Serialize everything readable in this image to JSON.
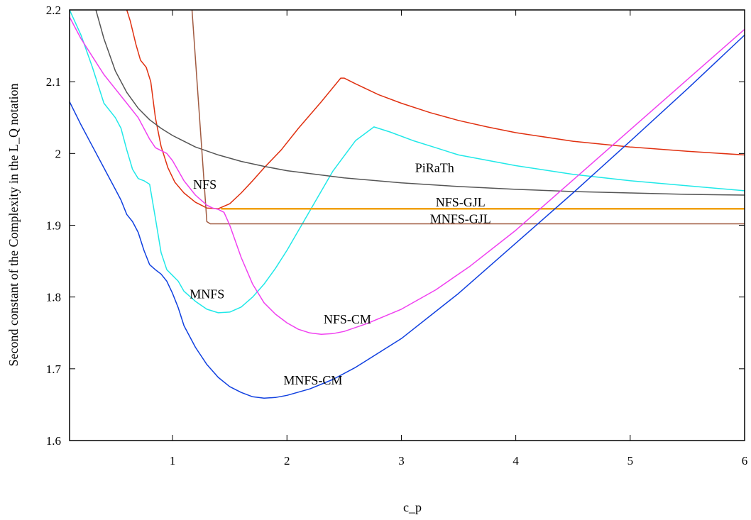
{
  "chart_data": {
    "type": "line",
    "title": "",
    "xlabel": "c_p",
    "ylabel": "Second constant of the Complexity in the L_Q notation",
    "xlim": [
      0.1,
      6
    ],
    "ylim": [
      1.6,
      2.2
    ],
    "xticks": [
      1,
      2,
      3,
      4,
      5,
      6
    ],
    "xtick_labels": [
      "1",
      "2",
      "3",
      "4",
      "5",
      "6"
    ],
    "yticks": [
      1.6,
      1.7,
      1.8,
      1.9,
      2.0,
      2.1,
      2.2
    ],
    "ytick_labels": [
      "1.6",
      "1.7",
      "1.8",
      "1.9",
      "2",
      "2.1",
      "2.2"
    ],
    "grid": false,
    "legend": "none",
    "series": [
      {
        "name": "NFS",
        "color": "#e03010",
        "width": 1.5,
        "label_at": [
          1.18,
          1.951
        ],
        "points": [
          [
            0.6,
            2.2
          ],
          [
            0.63,
            2.185
          ],
          [
            0.68,
            2.152
          ],
          [
            0.72,
            2.13
          ],
          [
            0.77,
            2.12
          ],
          [
            0.81,
            2.1
          ],
          [
            0.85,
            2.05
          ],
          [
            0.9,
            2.01
          ],
          [
            0.96,
            1.98
          ],
          [
            1.02,
            1.96
          ],
          [
            1.1,
            1.945
          ],
          [
            1.2,
            1.932
          ],
          [
            1.3,
            1.924
          ],
          [
            1.4,
            1.923
          ],
          [
            1.5,
            1.93
          ],
          [
            1.6,
            1.945
          ],
          [
            1.7,
            1.962
          ],
          [
            1.8,
            1.98
          ],
          [
            1.95,
            2.005
          ],
          [
            2.1,
            2.035
          ],
          [
            2.3,
            2.072
          ],
          [
            2.47,
            2.105
          ],
          [
            2.5,
            2.105
          ],
          [
            2.6,
            2.097
          ],
          [
            2.8,
            2.082
          ],
          [
            3.0,
            2.07
          ],
          [
            3.25,
            2.057
          ],
          [
            3.5,
            2.046
          ],
          [
            3.75,
            2.037
          ],
          [
            4.0,
            2.029
          ],
          [
            4.5,
            2.017
          ],
          [
            5.0,
            2.009
          ],
          [
            5.5,
            2.003
          ],
          [
            6.0,
            1.998
          ]
        ]
      },
      {
        "name": "MNFS",
        "color": "#20e8e8",
        "width": 1.5,
        "label_at": [
          1.15,
          1.798
        ],
        "points": [
          [
            0.1,
            2.2
          ],
          [
            0.2,
            2.165
          ],
          [
            0.3,
            2.12
          ],
          [
            0.4,
            2.07
          ],
          [
            0.5,
            2.05
          ],
          [
            0.55,
            2.035
          ],
          [
            0.6,
            2.005
          ],
          [
            0.65,
            1.978
          ],
          [
            0.7,
            1.965
          ],
          [
            0.75,
            1.962
          ],
          [
            0.8,
            1.957
          ],
          [
            0.85,
            1.91
          ],
          [
            0.9,
            1.862
          ],
          [
            0.95,
            1.838
          ],
          [
            1.0,
            1.83
          ],
          [
            1.05,
            1.822
          ],
          [
            1.1,
            1.808
          ],
          [
            1.2,
            1.794
          ],
          [
            1.3,
            1.783
          ],
          [
            1.4,
            1.778
          ],
          [
            1.5,
            1.779
          ],
          [
            1.6,
            1.786
          ],
          [
            1.7,
            1.8
          ],
          [
            1.8,
            1.818
          ],
          [
            1.9,
            1.84
          ],
          [
            2.0,
            1.865
          ],
          [
            2.2,
            1.92
          ],
          [
            2.4,
            1.975
          ],
          [
            2.6,
            2.018
          ],
          [
            2.76,
            2.037
          ],
          [
            2.9,
            2.03
          ],
          [
            3.1,
            2.018
          ],
          [
            3.3,
            2.008
          ],
          [
            3.5,
            1.998
          ],
          [
            4.0,
            1.983
          ],
          [
            4.5,
            1.971
          ],
          [
            5.0,
            1.962
          ],
          [
            5.5,
            1.955
          ],
          [
            6.0,
            1.948
          ]
        ]
      },
      {
        "name": "PiRaTh",
        "color": "#555555",
        "width": 1.5,
        "label_at": [
          3.12,
          1.974
        ],
        "points": [
          [
            0.33,
            2.2
          ],
          [
            0.4,
            2.16
          ],
          [
            0.5,
            2.115
          ],
          [
            0.6,
            2.085
          ],
          [
            0.7,
            2.063
          ],
          [
            0.8,
            2.047
          ],
          [
            0.9,
            2.035
          ],
          [
            1.0,
            2.025
          ],
          [
            1.2,
            2.009
          ],
          [
            1.4,
            1.998
          ],
          [
            1.6,
            1.989
          ],
          [
            1.8,
            1.982
          ],
          [
            2.0,
            1.976
          ],
          [
            2.5,
            1.966
          ],
          [
            3.0,
            1.959
          ],
          [
            3.5,
            1.954
          ],
          [
            4.0,
            1.95
          ],
          [
            4.5,
            1.947
          ],
          [
            5.0,
            1.945
          ],
          [
            5.5,
            1.943
          ],
          [
            6.0,
            1.942
          ]
        ]
      },
      {
        "name": "NFS-GJL",
        "color": "#f0a000",
        "width": 2.5,
        "label_at": [
          3.3,
          1.926
        ],
        "points": [
          [
            1.43,
            1.923
          ],
          [
            6.0,
            1.923
          ]
        ]
      },
      {
        "name": "MNFS-GJL",
        "color": "#a05a40",
        "width": 1.5,
        "label_at": [
          3.25,
          1.903
        ],
        "points": [
          [
            1.17,
            2.2
          ],
          [
            1.3,
            1.905
          ],
          [
            1.33,
            1.902
          ],
          [
            6.0,
            1.902
          ]
        ]
      },
      {
        "name": "NFS-CM",
        "color": "#f040f0",
        "width": 1.5,
        "label_at": [
          2.32,
          1.763
        ],
        "points": [
          [
            0.1,
            2.19
          ],
          [
            0.2,
            2.16
          ],
          [
            0.3,
            2.135
          ],
          [
            0.4,
            2.11
          ],
          [
            0.5,
            2.09
          ],
          [
            0.6,
            2.07
          ],
          [
            0.7,
            2.05
          ],
          [
            0.8,
            2.02
          ],
          [
            0.85,
            2.008
          ],
          [
            0.95,
            2.0
          ],
          [
            1.0,
            1.99
          ],
          [
            1.1,
            1.962
          ],
          [
            1.2,
            1.942
          ],
          [
            1.3,
            1.928
          ],
          [
            1.35,
            1.924
          ],
          [
            1.4,
            1.922
          ],
          [
            1.45,
            1.918
          ],
          [
            1.5,
            1.9
          ],
          [
            1.6,
            1.855
          ],
          [
            1.7,
            1.818
          ],
          [
            1.8,
            1.792
          ],
          [
            1.9,
            1.776
          ],
          [
            2.0,
            1.764
          ],
          [
            2.1,
            1.755
          ],
          [
            2.2,
            1.75
          ],
          [
            2.3,
            1.748
          ],
          [
            2.4,
            1.749
          ],
          [
            2.5,
            1.752
          ],
          [
            2.7,
            1.763
          ],
          [
            3.0,
            1.783
          ],
          [
            3.3,
            1.81
          ],
          [
            3.6,
            1.843
          ],
          [
            4.0,
            1.893
          ],
          [
            4.5,
            1.963
          ],
          [
            5.0,
            2.033
          ],
          [
            5.5,
            2.103
          ],
          [
            6.0,
            2.173
          ]
        ]
      },
      {
        "name": "MNFS-CM",
        "color": "#1040e0",
        "width": 1.5,
        "label_at": [
          1.97,
          1.678
        ],
        "points": [
          [
            0.1,
            2.072
          ],
          [
            0.2,
            2.04
          ],
          [
            0.3,
            2.01
          ],
          [
            0.4,
            1.98
          ],
          [
            0.5,
            1.95
          ],
          [
            0.55,
            1.935
          ],
          [
            0.6,
            1.915
          ],
          [
            0.65,
            1.905
          ],
          [
            0.7,
            1.89
          ],
          [
            0.75,
            1.865
          ],
          [
            0.8,
            1.845
          ],
          [
            0.85,
            1.838
          ],
          [
            0.9,
            1.832
          ],
          [
            0.95,
            1.822
          ],
          [
            1.0,
            1.805
          ],
          [
            1.05,
            1.785
          ],
          [
            1.1,
            1.76
          ],
          [
            1.2,
            1.73
          ],
          [
            1.3,
            1.706
          ],
          [
            1.4,
            1.688
          ],
          [
            1.5,
            1.675
          ],
          [
            1.6,
            1.667
          ],
          [
            1.7,
            1.661
          ],
          [
            1.8,
            1.659
          ],
          [
            1.9,
            1.66
          ],
          [
            2.0,
            1.663
          ],
          [
            2.2,
            1.672
          ],
          [
            2.4,
            1.685
          ],
          [
            2.6,
            1.702
          ],
          [
            3.0,
            1.742
          ],
          [
            3.5,
            1.805
          ],
          [
            4.0,
            1.875
          ],
          [
            4.5,
            1.945
          ],
          [
            5.0,
            2.017
          ],
          [
            5.5,
            2.09
          ],
          [
            6.0,
            2.165
          ]
        ]
      }
    ]
  }
}
